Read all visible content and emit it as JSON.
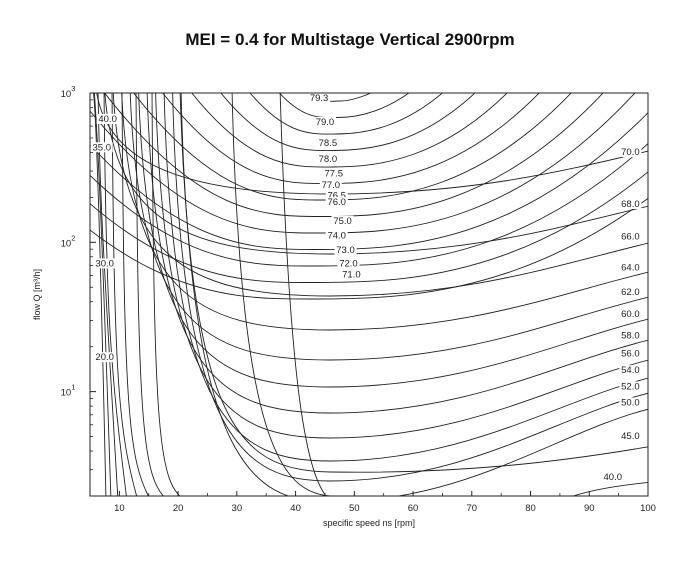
{
  "chart_data": {
    "type": "contour",
    "title": "MEI = 0.4 for Multistage Vertical 2900rpm",
    "xlabel": "specific speed ns [rpm]",
    "ylabel": "flow Q [m³/h]",
    "xlim": [
      5,
      100
    ],
    "ylim": [
      2,
      1000
    ],
    "y_scale": "log",
    "x_ticks": [
      "10",
      "20",
      "30",
      "40",
      "50",
      "60",
      "70",
      "80",
      "90",
      "100"
    ],
    "y_ticks": [
      {
        "base": "10",
        "exp": "1"
      },
      {
        "base": "10",
        "exp": "2"
      },
      {
        "base": "10",
        "exp": "3"
      }
    ],
    "grid": false,
    "contour_line_color": "#222222",
    "contour_labels": [
      {
        "text": "79.3",
        "x": 44,
        "y": 900
      },
      {
        "text": "79.0",
        "x": 45,
        "y": 620
      },
      {
        "text": "78.5",
        "x": 45.5,
        "y": 450
      },
      {
        "text": "78.0",
        "x": 45.5,
        "y": 350
      },
      {
        "text": "77.5",
        "x": 46.5,
        "y": 280
      },
      {
        "text": "77.0",
        "x": 46,
        "y": 235
      },
      {
        "text": "76.5",
        "x": 47,
        "y": 200
      },
      {
        "text": "76.0",
        "x": 47,
        "y": 180
      },
      {
        "text": "75.0",
        "x": 48,
        "y": 135
      },
      {
        "text": "74.0",
        "x": 47,
        "y": 108
      },
      {
        "text": "73.0",
        "x": 48.5,
        "y": 86
      },
      {
        "text": "72.0",
        "x": 49,
        "y": 70
      },
      {
        "text": "71.0",
        "x": 49.5,
        "y": 59
      },
      {
        "text": "70.0",
        "x": 97,
        "y": 390
      },
      {
        "text": "68.0",
        "x": 97,
        "y": 175
      },
      {
        "text": "66.0",
        "x": 97,
        "y": 106
      },
      {
        "text": "64.0",
        "x": 97,
        "y": 66
      },
      {
        "text": "62.0",
        "x": 97,
        "y": 45
      },
      {
        "text": "60.0",
        "x": 97,
        "y": 32
      },
      {
        "text": "58.0",
        "x": 97,
        "y": 23
      },
      {
        "text": "56.0",
        "x": 97,
        "y": 17.5
      },
      {
        "text": "54.0",
        "x": 97,
        "y": 13.5
      },
      {
        "text": "52.0",
        "x": 97,
        "y": 10.5
      },
      {
        "text": "50.0",
        "x": 97,
        "y": 8.2
      },
      {
        "text": "45.0",
        "x": 97,
        "y": 4.9
      },
      {
        "text": "40.0",
        "x": 94,
        "y": 2.6
      },
      {
        "text": "40.0",
        "x": 8,
        "y": 650
      },
      {
        "text": "35.0",
        "x": 7,
        "y": 420
      },
      {
        "text": "30.0",
        "x": 7.5,
        "y": 70
      },
      {
        "text": "20.0",
        "x": 7.5,
        "y": 16.5
      }
    ]
  }
}
